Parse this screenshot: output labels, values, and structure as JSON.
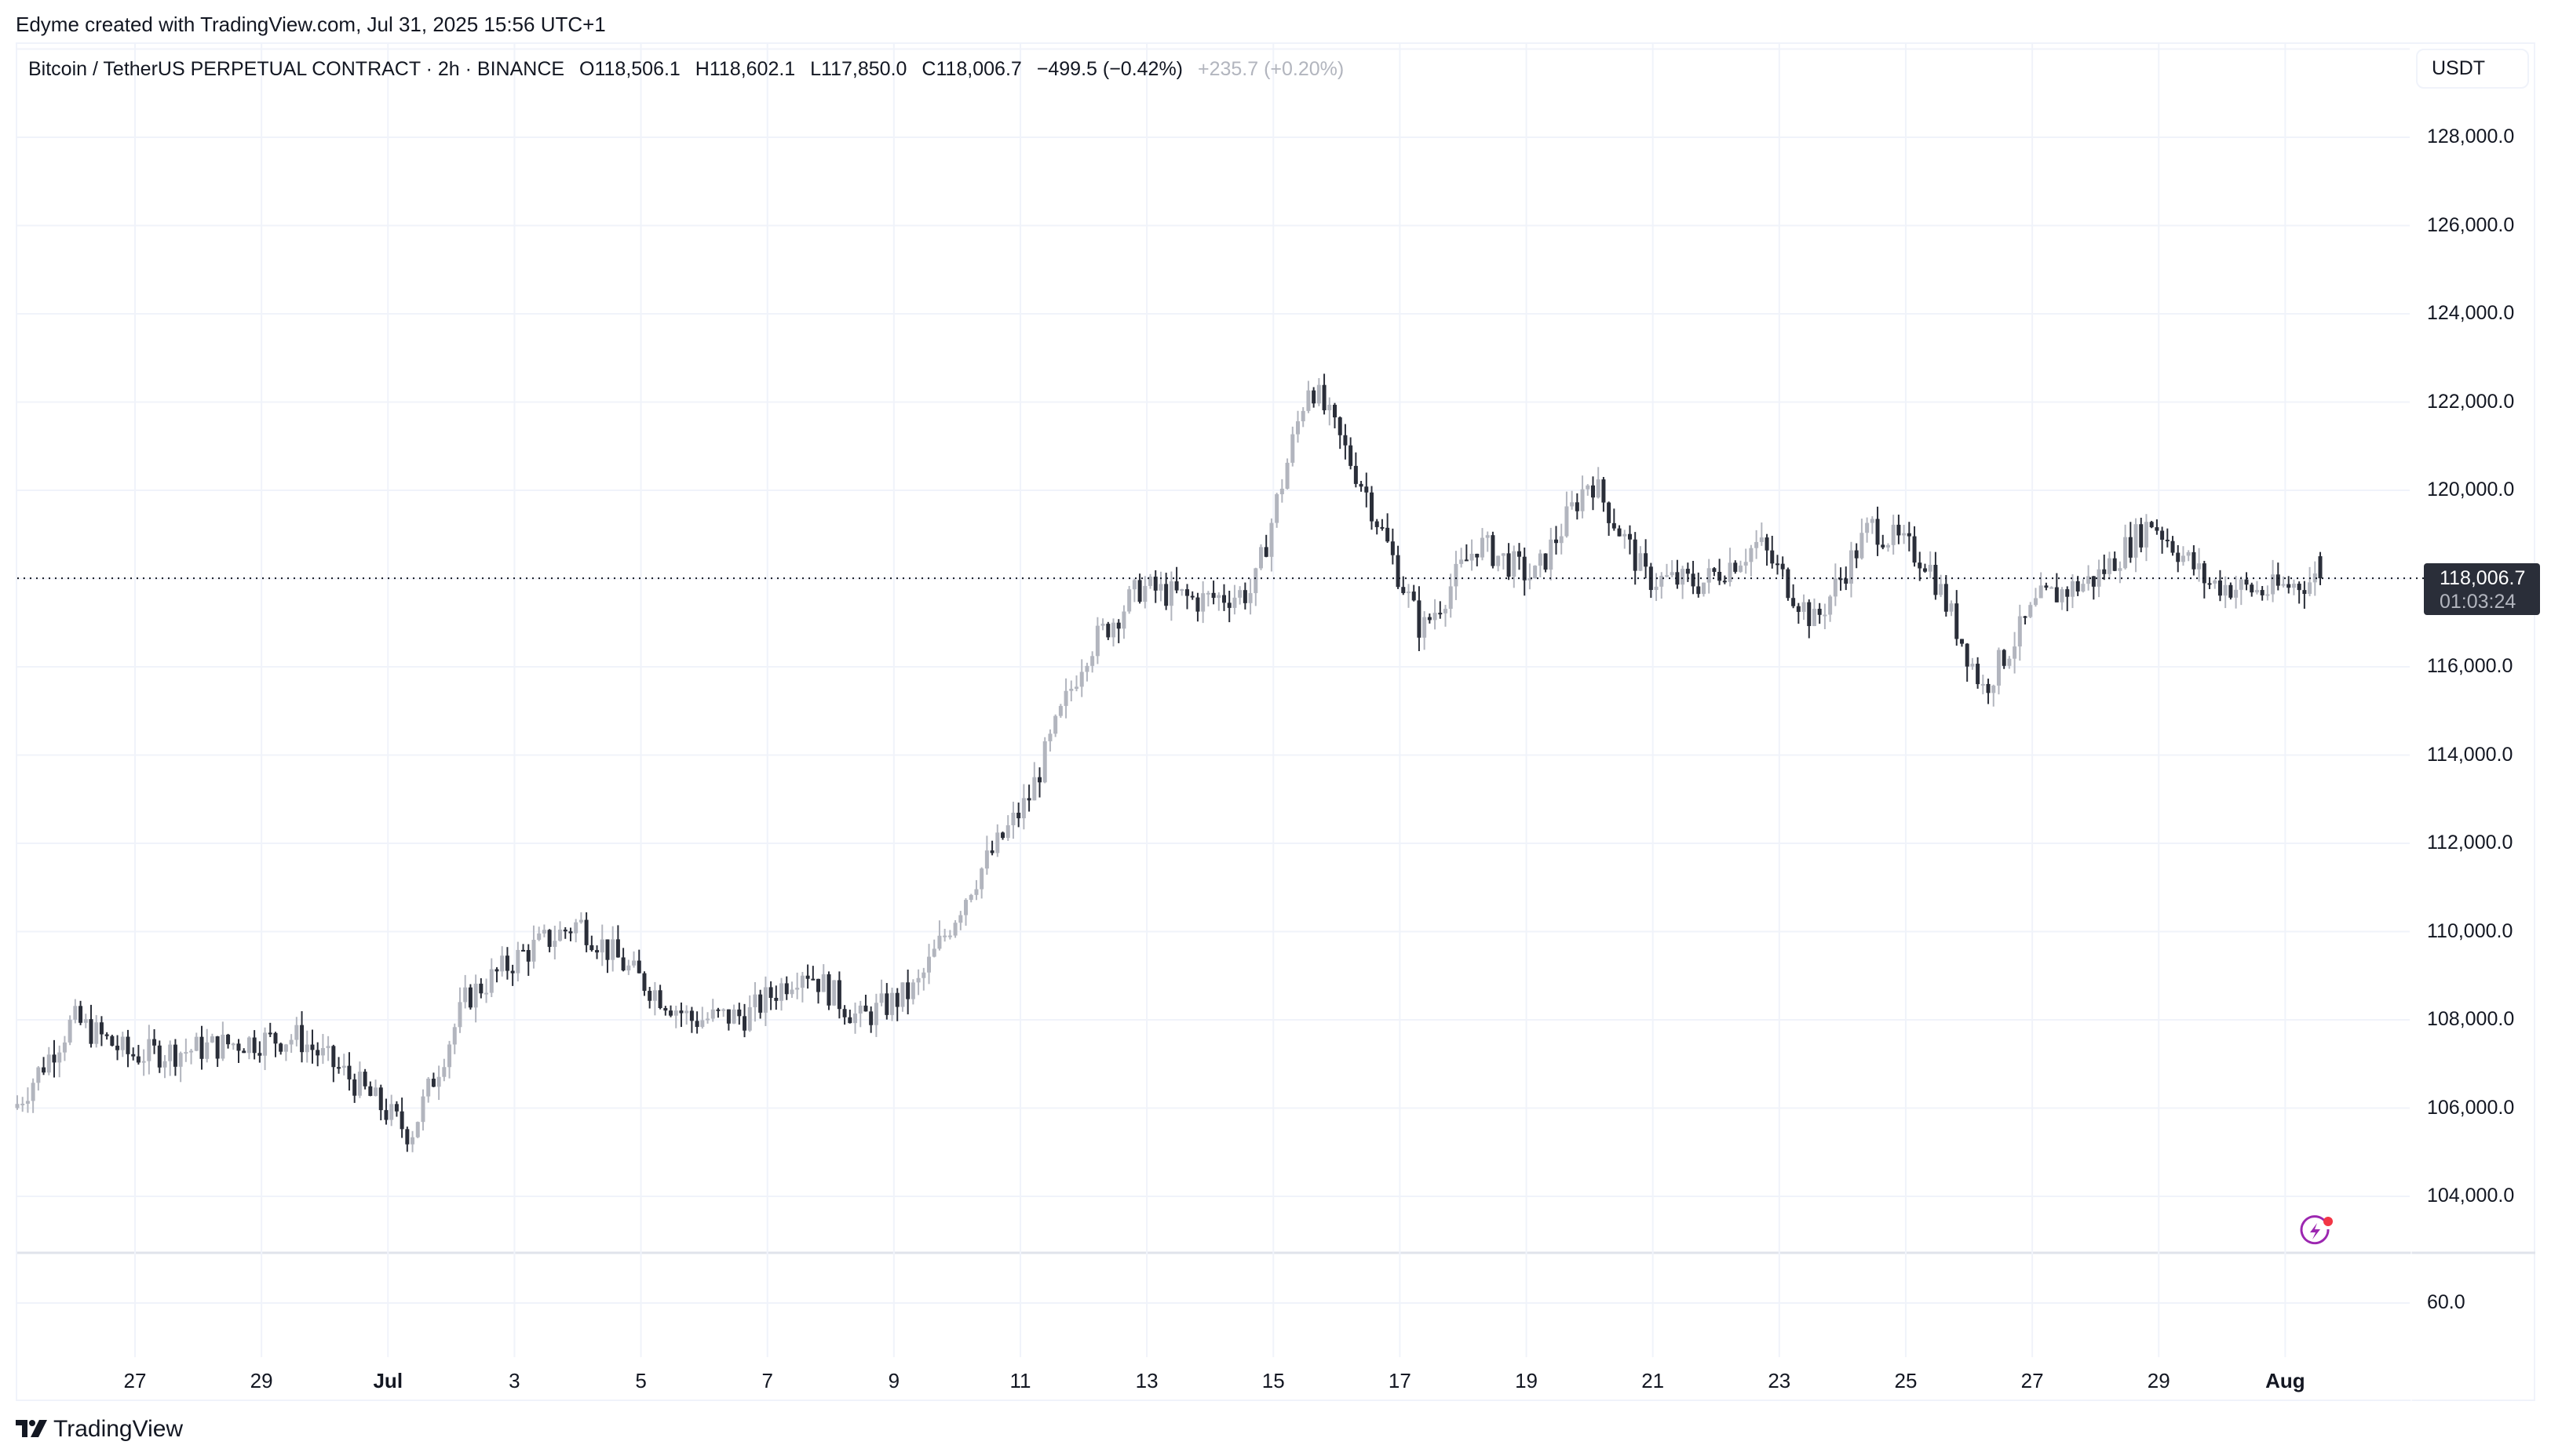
{
  "attribution": "Edyme created with TradingView.com, Jul 31, 2025 15:56 UTC+1",
  "legend": {
    "symbol": "Bitcoin / TetherUS PERPETUAL CONTRACT · 2h · BINANCE",
    "open": "O118,506.1",
    "high": "H118,602.1",
    "low": "L117,850.0",
    "close": "C118,006.7",
    "change": "−499.5 (−0.42%)",
    "extra_change": "+235.7 (+0.20%)"
  },
  "currency": "USDT",
  "last_price": {
    "value": "118,006.7",
    "countdown": "01:03:24"
  },
  "price_axis": [
    "128,000.0",
    "126,000.0",
    "124,000.0",
    "122,000.0",
    "120,000.0",
    "118,000.0",
    "116,000.0",
    "114,000.0",
    "112,000.0",
    "110,000.0",
    "108,000.0",
    "106,000.0",
    "104,000.0"
  ],
  "lower_pane_axis": [
    "60.0"
  ],
  "time_axis": [
    {
      "label": "27",
      "bold": false
    },
    {
      "label": "29",
      "bold": false
    },
    {
      "label": "Jul",
      "bold": true
    },
    {
      "label": "3",
      "bold": false
    },
    {
      "label": "5",
      "bold": false
    },
    {
      "label": "7",
      "bold": false
    },
    {
      "label": "9",
      "bold": false
    },
    {
      "label": "11",
      "bold": false
    },
    {
      "label": "13",
      "bold": false
    },
    {
      "label": "15",
      "bold": false
    },
    {
      "label": "17",
      "bold": false
    },
    {
      "label": "19",
      "bold": false
    },
    {
      "label": "21",
      "bold": false
    },
    {
      "label": "23",
      "bold": false
    },
    {
      "label": "25",
      "bold": false
    },
    {
      "label": "27",
      "bold": false
    },
    {
      "label": "29",
      "bold": false
    },
    {
      "label": "Aug",
      "bold": true
    }
  ],
  "colors": {
    "up": "#b2b5be",
    "down": "#2a2e39",
    "grid": "#f0f3fa",
    "lightning": "#9c27b0",
    "alert_dot": "#f23645"
  },
  "branding": "TradingView",
  "chart_data": {
    "type": "candlestick",
    "title": "Bitcoin / TetherUS PERPETUAL CONTRACT · 2h · BINANCE",
    "xlabel": "",
    "ylabel": "USDT",
    "ylim": [
      103000,
      130000
    ],
    "x_range": [
      "Jun 25 2025",
      "Jul 31 2025 14:00"
    ],
    "interval": "2h",
    "grid": true,
    "last_close": 118006.7,
    "anchors_closes": [
      [
        "Jun 25",
        106100
      ],
      [
        "Jun 26",
        108000
      ],
      [
        "Jun 27",
        107200
      ],
      [
        "Jun 28",
        107300
      ],
      [
        "Jun 29",
        107500
      ],
      [
        "Jun 30",
        107600
      ],
      [
        "Jul 1",
        106600
      ],
      [
        "Jul 2",
        105400
      ],
      [
        "Jul 2 late",
        108500
      ],
      [
        "Jul 3",
        109500
      ],
      [
        "Jul 3 late",
        110200
      ],
      [
        "Jul 4",
        109000
      ],
      [
        "Jul 5",
        108000
      ],
      [
        "Jul 6",
        108100
      ],
      [
        "Jul 7",
        109200
      ],
      [
        "Jul 8",
        108000
      ],
      [
        "Jul 9",
        108700
      ],
      [
        "Jul 10",
        111100
      ],
      [
        "Jul 10 late",
        113000
      ],
      [
        "Jul 11",
        116300
      ],
      [
        "Jul 11 late",
        117800
      ],
      [
        "Jul 12",
        117500
      ],
      [
        "Jul 13",
        117700
      ],
      [
        "Jul 14",
        122500
      ],
      [
        "Jul 14 late",
        120000
      ],
      [
        "Jul 15",
        116800
      ],
      [
        "Jul 16",
        118800
      ],
      [
        "Jul 17",
        118000
      ],
      [
        "Jul 18",
        120300
      ],
      [
        "Jul 19",
        118000
      ],
      [
        "Jul 20",
        117900
      ],
      [
        "Jul 21",
        118800
      ],
      [
        "Jul 22",
        117000
      ],
      [
        "Jul 23",
        119200
      ],
      [
        "Jul 24",
        118400
      ],
      [
        "Jul 25",
        115500
      ],
      [
        "Jul 26",
        117500
      ],
      [
        "Jul 27",
        118000
      ],
      [
        "Jul 28",
        119300
      ],
      [
        "Jul 29",
        117900
      ],
      [
        "Jul 30",
        117700
      ],
      [
        "Jul 31",
        118006.7
      ]
    ]
  }
}
